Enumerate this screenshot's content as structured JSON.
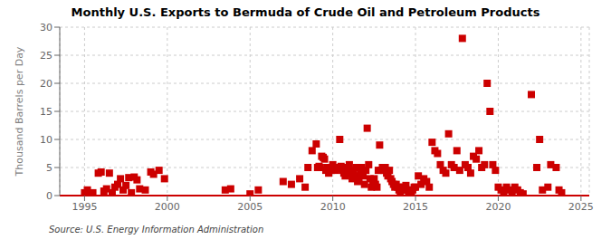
{
  "chart_data": {
    "type": "scatter",
    "title": "Monthly U.S. Exports to Bermuda of Crude Oil and Petroleum Products",
    "ylabel": "Thousand Barrels per Day",
    "annotation": "Source: U.S. Energy Information Administration",
    "color": "#cc0000",
    "marker": "square",
    "grid": true,
    "xlim": [
      1993.5,
      2025.5
    ],
    "ylim": [
      0,
      30
    ],
    "xticks": [
      1995,
      2000,
      2005,
      2010,
      2015,
      2020,
      2025
    ],
    "yticks": [
      0,
      5,
      10,
      15,
      20,
      25,
      30
    ],
    "x": [
      1995.0,
      1995.17,
      1995.33,
      1995.5,
      1995.83,
      1996.0,
      1996.17,
      1996.33,
      1996.5,
      1996.67,
      1996.83,
      1997.0,
      1997.17,
      1997.33,
      1997.5,
      1997.67,
      1997.83,
      1998.0,
      1998.17,
      1998.33,
      1998.67,
      1999.0,
      1999.17,
      1999.5,
      1999.83,
      2003.5,
      2003.83,
      2005.0,
      2005.5,
      2007.0,
      2007.5,
      2008.0,
      2008.33,
      2008.5,
      2008.75,
      2009.0,
      2009.08,
      2009.17,
      2009.25,
      2009.33,
      2009.42,
      2009.5,
      2009.58,
      2009.67,
      2009.75,
      2009.83,
      2009.92,
      2010.0,
      2010.08,
      2010.17,
      2010.25,
      2010.33,
      2010.42,
      2010.5,
      2010.58,
      2010.67,
      2010.75,
      2010.83,
      2010.92,
      2011.0,
      2011.08,
      2011.17,
      2011.25,
      2011.33,
      2011.42,
      2011.5,
      2011.58,
      2011.67,
      2011.75,
      2011.83,
      2011.92,
      2012.0,
      2012.08,
      2012.17,
      2012.25,
      2012.33,
      2012.42,
      2012.5,
      2012.58,
      2012.67,
      2012.75,
      2012.83,
      2012.92,
      2013.0,
      2013.08,
      2013.17,
      2013.25,
      2013.33,
      2013.42,
      2013.5,
      2013.58,
      2013.67,
      2013.75,
      2013.83,
      2013.92,
      2014.0,
      2014.08,
      2014.17,
      2014.25,
      2014.33,
      2014.42,
      2014.5,
      2014.58,
      2014.67,
      2014.75,
      2014.83,
      2014.92,
      2015.0,
      2015.17,
      2015.33,
      2015.5,
      2015.67,
      2015.83,
      2016.0,
      2016.17,
      2016.33,
      2016.5,
      2016.67,
      2016.83,
      2017.0,
      2017.17,
      2017.33,
      2017.5,
      2017.67,
      2017.83,
      2018.0,
      2018.17,
      2018.33,
      2018.5,
      2018.67,
      2018.83,
      2019.0,
      2019.17,
      2019.33,
      2019.5,
      2019.67,
      2019.83,
      2020.0,
      2020.17,
      2020.33,
      2020.5,
      2020.67,
      2020.83,
      2021.0,
      2021.17,
      2021.33,
      2021.5,
      2022.0,
      2022.33,
      2022.5,
      2022.67,
      2023.0,
      2023.17,
      2023.5,
      2023.67,
      2023.83
    ],
    "values": [
      0.5,
      1.0,
      0.3,
      0.5,
      4.0,
      4.2,
      0.8,
      1.2,
      4.0,
      0.5,
      1.5,
      2.0,
      3.0,
      1.0,
      1.8,
      3.2,
      0.5,
      3.3,
      2.8,
      1.2,
      1.0,
      4.2,
      3.8,
      4.5,
      3.0,
      1.0,
      1.2,
      0.3,
      1.0,
      2.5,
      2.0,
      3.0,
      1.5,
      5.0,
      8.0,
      9.2,
      5.0,
      5.2,
      5.0,
      7.0,
      6.8,
      6.5,
      4.5,
      5.0,
      4.0,
      5.0,
      4.5,
      5.5,
      5.0,
      4.5,
      5.0,
      4.8,
      10.0,
      5.2,
      4.5,
      4.0,
      3.5,
      5.0,
      4.5,
      5.5,
      4.0,
      3.0,
      4.5,
      3.5,
      5.0,
      2.5,
      3.0,
      4.0,
      5.0,
      3.5,
      2.0,
      4.5,
      12.0,
      5.5,
      3.0,
      1.5,
      2.5,
      3.0,
      2.0,
      1.5,
      4.5,
      9.0,
      4.5,
      5.0,
      4.5,
      5.0,
      4.0,
      3.5,
      4.5,
      3.0,
      2.5,
      2.0,
      1.5,
      2.0,
      1.5,
      1.0,
      0.5,
      1.5,
      1.0,
      1.5,
      1.8,
      1.0,
      0.5,
      0.3,
      0.5,
      1.0,
      1.5,
      1.5,
      3.5,
      2.0,
      3.0,
      2.5,
      1.5,
      9.5,
      8.0,
      7.5,
      5.5,
      4.5,
      4.0,
      11.0,
      5.5,
      5.0,
      8.0,
      4.5,
      28.0,
      5.5,
      5.0,
      4.0,
      7.0,
      6.5,
      8.0,
      5.0,
      5.5,
      20.0,
      15.0,
      5.5,
      4.5,
      1.5,
      1.0,
      0.5,
      1.5,
      1.0,
      0.5,
      1.5,
      1.0,
      0.5,
      0.3,
      18.0,
      5.0,
      10.0,
      1.0,
      1.5,
      5.5,
      5.0,
      1.0,
      0.5
    ]
  }
}
